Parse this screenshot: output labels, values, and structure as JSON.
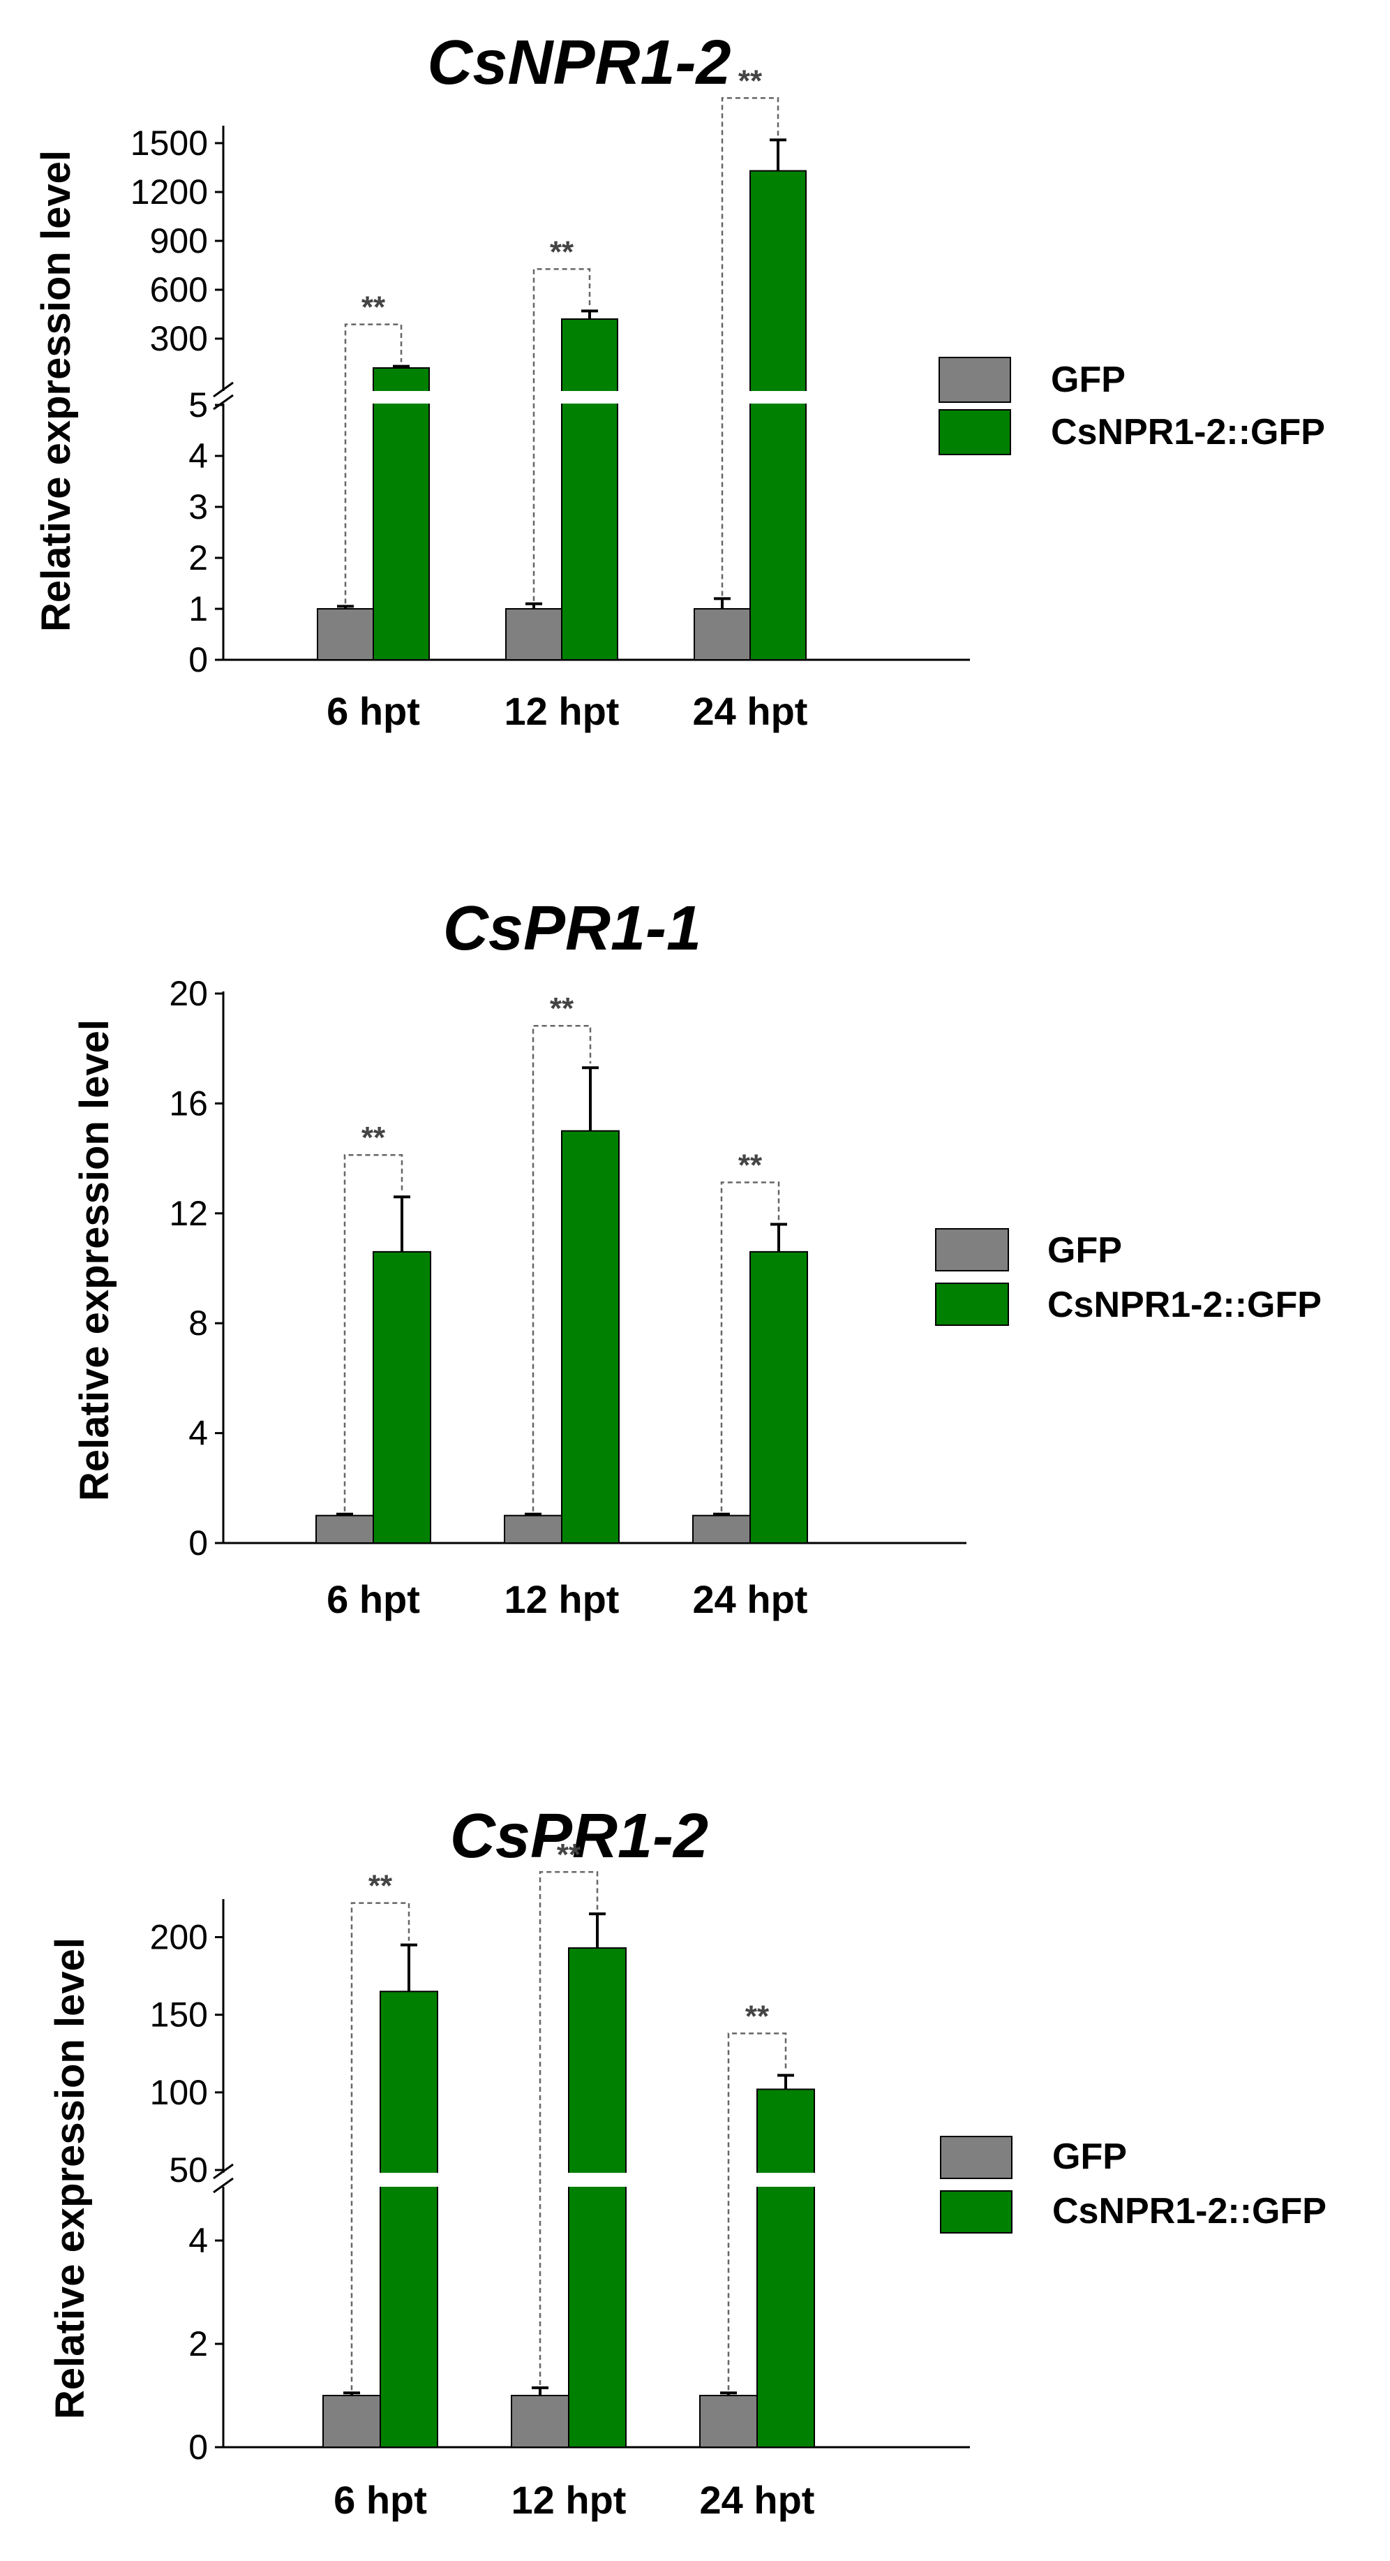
{
  "colors": {
    "gfp": "#808080",
    "npr": "#008000",
    "axis": "#000000",
    "bracket": "#666666"
  },
  "chart_data": [
    {
      "type": "bar",
      "title": "CsNPR1-2",
      "ylabel": "Relative expression level",
      "xlabel": "",
      "categories": [
        "6 hpt",
        "12 hpt",
        "24 hpt"
      ],
      "series": [
        {
          "name": "GFP",
          "values": [
            1,
            1,
            1
          ],
          "errors": [
            0.05,
            0.1,
            0.2
          ]
        },
        {
          "name": "CsNPR1-2::GFP",
          "values": [
            120,
            420,
            1330
          ],
          "errors": [
            10,
            50,
            190
          ]
        }
      ],
      "significance": [
        "**",
        "**",
        "**"
      ],
      "axis_break": {
        "lower": [
          0,
          5
        ],
        "upper": [
          0,
          1500
        ]
      },
      "yticks_lower": [
        "0",
        "1",
        "2",
        "3",
        "4",
        "5"
      ],
      "yticks_upper": [
        "300",
        "600",
        "900",
        "1200",
        "1500"
      ],
      "legend_position": "right",
      "grid": false
    },
    {
      "type": "bar",
      "title": "CsPR1-1",
      "ylabel": "Relative expression level",
      "xlabel": "",
      "categories": [
        "6 hpt",
        "12 hpt",
        "24 hpt"
      ],
      "series": [
        {
          "name": "GFP",
          "values": [
            1,
            1,
            1
          ],
          "errors": [
            0.05,
            0.05,
            0.05
          ]
        },
        {
          "name": "CsNPR1-2::GFP",
          "values": [
            10.6,
            15.0,
            10.6
          ],
          "errors": [
            2.0,
            2.3,
            1.0
          ]
        }
      ],
      "significance": [
        "**",
        "**",
        "**"
      ],
      "ylim": [
        0,
        20
      ],
      "yticks": [
        "0",
        "4",
        "8",
        "12",
        "16",
        "20"
      ],
      "legend_position": "right",
      "grid": false
    },
    {
      "type": "bar",
      "title": "CsPR1-2",
      "ylabel": "Relative expression level",
      "xlabel": "",
      "categories": [
        "6 hpt",
        "12 hpt",
        "24 hpt"
      ],
      "series": [
        {
          "name": "GFP",
          "values": [
            1,
            1,
            1
          ],
          "errors": [
            0.05,
            0.15,
            0.05
          ]
        },
        {
          "name": "CsNPR1-2::GFP",
          "values": [
            165,
            193,
            102
          ],
          "errors": [
            30,
            22,
            9
          ]
        }
      ],
      "significance": [
        "**",
        "**",
        "**"
      ],
      "axis_break": {
        "lower": [
          0,
          5
        ],
        "upper": [
          50,
          220
        ]
      },
      "yticks_lower": [
        "0",
        "2",
        "4"
      ],
      "yticks_upper": [
        "50",
        "100",
        "150",
        "200"
      ],
      "legend_position": "right",
      "grid": false
    }
  ]
}
